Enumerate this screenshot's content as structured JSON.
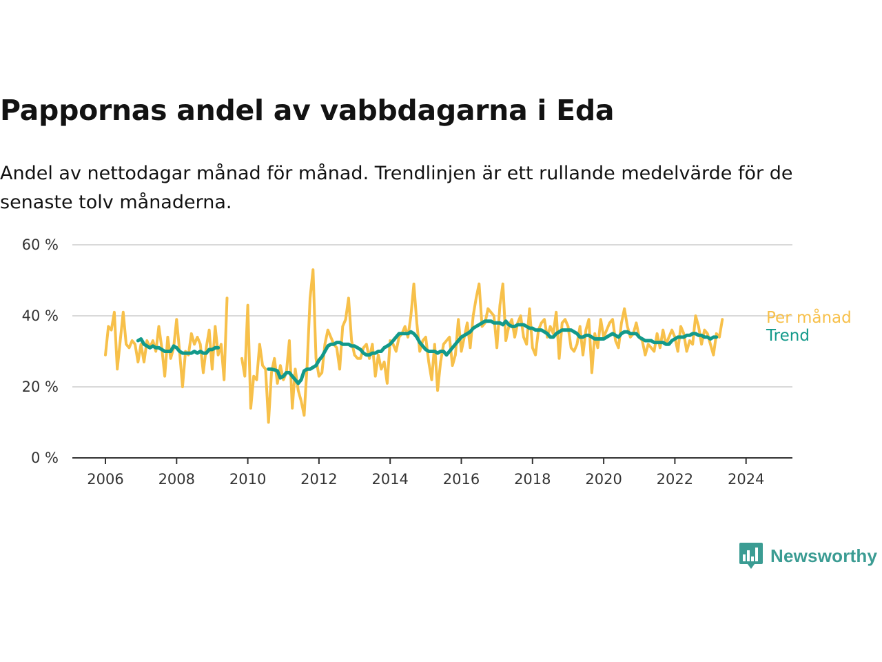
{
  "title": "Pappornas andel av vabbdagarna i Eda",
  "subtitle": "Andel av nettodagar månad för månad. Trendlinjen är ett rullande medelvärde för de senaste tolv månaderna.",
  "logo": {
    "text": "Newsworthy",
    "icon": "newsworthy-chart-icon",
    "color": "#3b9c93"
  },
  "chart_data": {
    "type": "line",
    "x_axis": {
      "type": "date",
      "start": "2005-12",
      "end": "2025-07",
      "tick_labels": [
        "2006",
        "2008",
        "2010",
        "2012",
        "2014",
        "2016",
        "2018",
        "2020",
        "2022",
        "2024"
      ]
    },
    "y_axis": {
      "min": 0,
      "max": 60,
      "ticks": [
        0,
        20,
        40,
        60
      ],
      "tick_labels": [
        "0 %",
        "20 %",
        "40 %",
        "60 %"
      ]
    },
    "grid": true,
    "legend": "inline-right",
    "series": [
      {
        "name": "Per månad",
        "color": "#f7c04a",
        "segments": [
          {
            "start": "2006-01",
            "values": [
              29,
              37,
              36,
              41,
              25,
              33,
              41,
              32,
              31,
              33,
              32,
              27,
              32,
              27,
              33,
              31,
              33,
              30,
              37,
              31,
              23,
              34,
              28,
              31,
              39,
              30,
              20,
              30,
              29,
              35,
              32,
              34,
              32,
              24,
              31,
              36,
              25,
              37,
              29,
              32,
              22,
              45
            ]
          },
          {
            "start": "2009-11",
            "values": [
              28,
              23,
              43,
              14,
              23,
              22,
              32,
              26,
              25,
              10,
              24,
              28,
              21,
              26,
              22,
              24,
              33,
              14,
              25,
              19,
              16,
              12,
              26,
              45,
              53,
              28,
              23,
              24,
              32,
              36,
              34,
              32,
              31,
              25,
              37,
              39,
              45,
              33,
              29,
              28,
              28,
              31,
              32,
              28,
              32,
              23,
              29,
              25,
              27,
              21,
              33,
              32,
              30,
              34,
              35,
              37,
              34,
              40,
              49,
              38,
              30,
              33,
              34,
              27,
              22,
              32,
              19,
              27,
              32,
              33,
              34,
              26,
              29,
              39,
              30,
              34,
              38,
              31,
              40,
              45,
              49,
              37,
              38,
              42,
              41,
              40,
              31,
              43,
              49,
              33,
              37,
              39,
              34,
              38,
              40,
              34,
              32,
              42,
              31,
              29,
              36,
              38,
              39,
              34,
              37,
              35,
              41,
              28,
              38,
              39,
              37,
              31,
              30,
              32,
              37,
              29,
              36,
              39,
              24,
              35,
              31,
              39,
              34,
              36,
              38,
              39,
              33,
              31,
              38,
              42,
              37,
              34,
              35,
              38,
              34,
              33,
              29,
              32,
              31,
              30,
              35,
              31,
              36,
              32,
              34,
              36,
              34,
              30,
              37,
              35,
              30,
              33,
              32,
              40,
              37,
              32,
              36,
              35,
              32,
              29,
              35,
              34,
              39
            ]
          }
        ]
      },
      {
        "name": "Trend",
        "color": "#12998a",
        "segments": [
          {
            "start": "2006-12",
            "values": [
              33,
              33.5,
              32,
              31.5,
              31,
              31.5,
              31,
              31,
              30.5,
              30,
              30,
              30,
              31.5,
              31,
              30,
              29.5,
              29.5,
              29.5,
              29.5,
              30,
              29.5,
              30,
              29.5,
              29.5,
              30.5,
              30.5,
              31,
              31
            ]
          },
          {
            "start": "2010-08",
            "values": [
              25,
              25,
              24.8,
              24.5,
              22.5,
              23,
              24,
              24,
              23,
              22,
              21,
              22,
              24.5,
              25,
              25,
              25.5,
              26,
              27.5,
              28.5,
              30,
              31.5,
              32,
              32,
              32.5,
              32.5,
              32,
              32,
              32,
              31.5,
              31.5,
              31,
              30.5,
              29.5,
              29,
              29,
              29.5,
              29.5,
              30,
              30,
              31,
              31.5,
              32,
              33,
              34,
              35,
              35,
              35,
              35,
              35.5,
              35,
              34,
              32.5,
              31.5,
              30.5,
              30,
              30,
              30,
              29.5,
              30,
              30,
              29,
              30,
              31,
              32,
              33,
              34,
              34.5,
              35,
              35.5,
              36.5,
              37,
              37.5,
              38,
              38.5,
              38.5,
              38.5,
              38,
              38,
              38,
              37.5,
              38.5,
              37.5,
              37,
              37,
              37.5,
              37.5,
              37.5,
              37,
              36.5,
              36.5,
              36,
              36,
              36,
              35.5,
              35,
              34,
              34,
              35,
              35.5,
              36,
              36,
              36,
              36,
              35.5,
              35,
              34,
              34,
              34.5,
              34.5,
              34,
              33.5,
              33.5,
              33.5,
              33.5,
              34,
              34.5,
              35,
              34.5,
              34,
              35,
              35.5,
              35.5,
              35,
              35,
              35,
              34,
              33.5,
              33,
              33,
              33,
              32.5,
              32.5,
              32.5,
              32.5,
              32,
              32,
              33,
              33.5,
              34,
              34,
              34,
              34.5,
              34.5,
              35,
              35,
              34.5,
              34.5,
              34,
              34,
              33.5,
              34,
              34
            ]
          }
        ]
      }
    ]
  }
}
